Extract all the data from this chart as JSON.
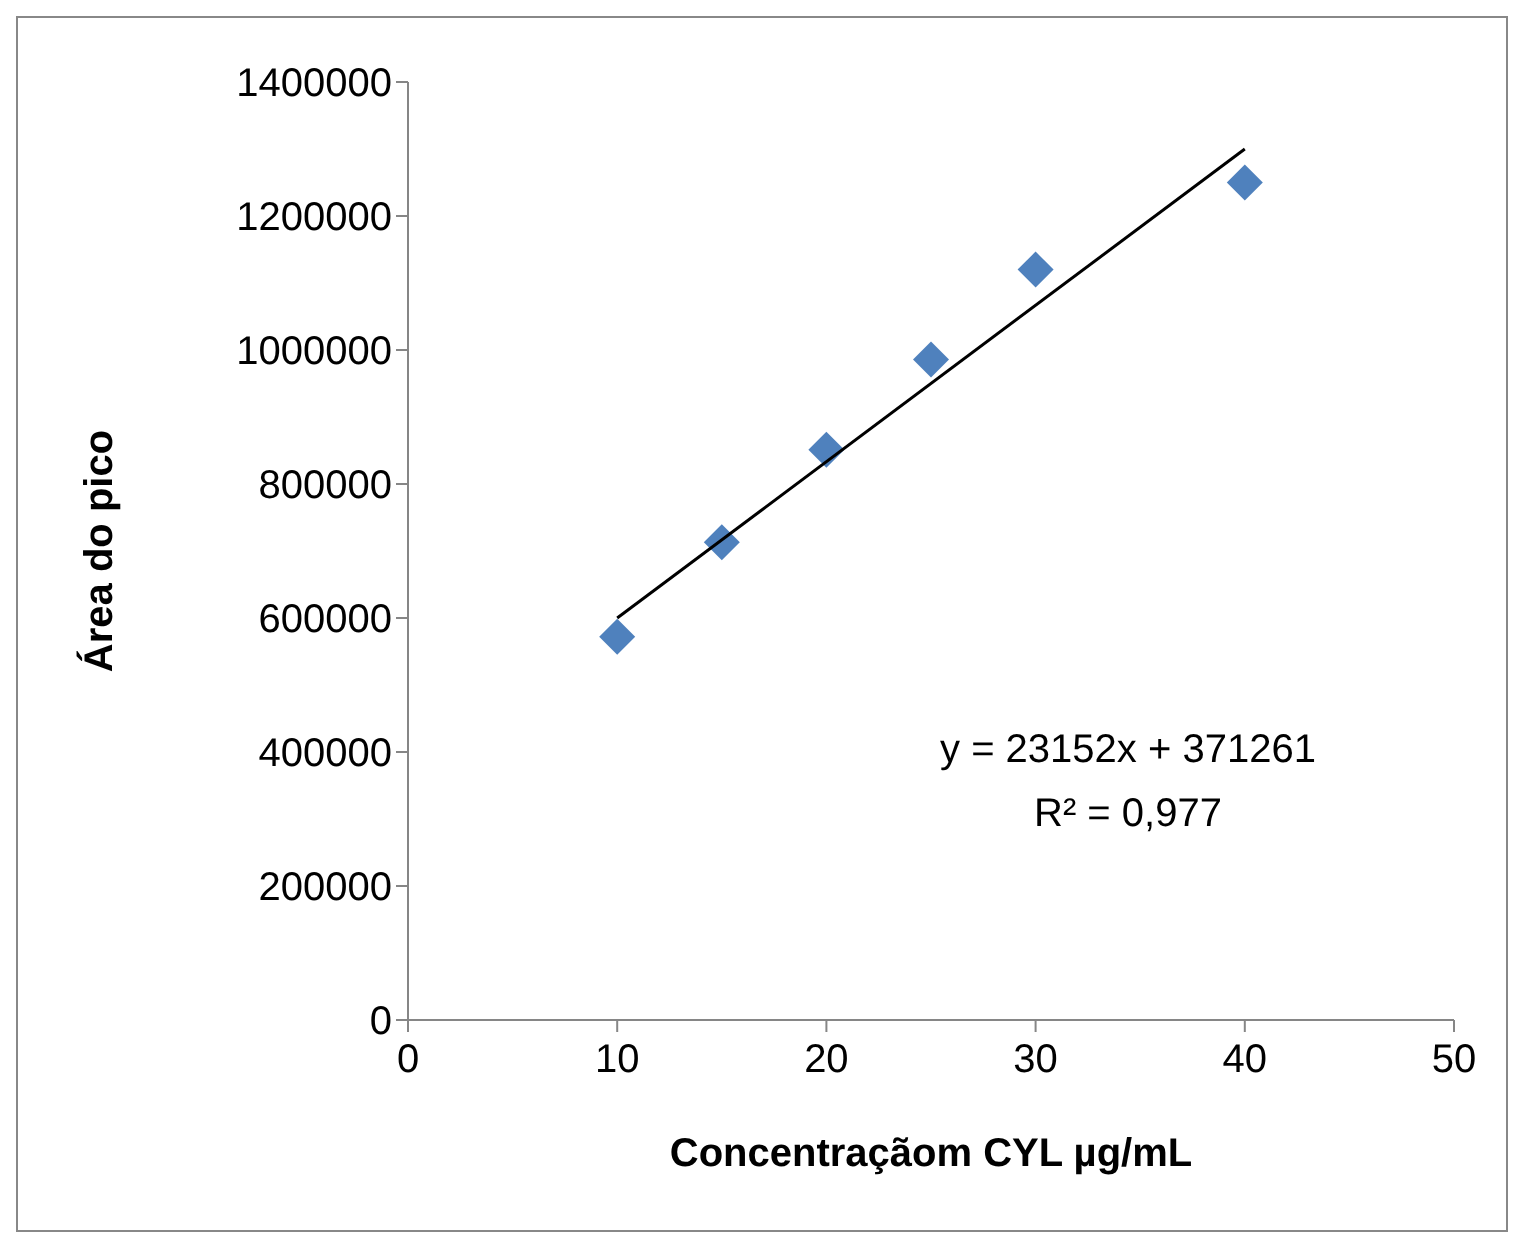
{
  "chart_data": {
    "type": "scatter",
    "xlabel": "Concentraçãom CYL µg/mL",
    "ylabel": "Área do pico",
    "x": [
      10,
      15,
      20,
      25,
      30,
      40
    ],
    "series": [
      {
        "color": "#4f81bd",
        "marker": "diamond",
        "values": [
          572000,
          713000,
          851000,
          986000,
          1120000,
          1250000
        ]
      },
      {
        "type": "line",
        "color": "#000000",
        "marker": "none",
        "x": [
          10,
          40
        ],
        "values": [
          600000,
          1300000
        ]
      }
    ],
    "xlim": [
      0,
      50
    ],
    "xticks": [
      0,
      10,
      20,
      30,
      40,
      50
    ],
    "ylim": [
      0,
      1400000
    ],
    "yticks": [
      0,
      200000,
      400000,
      600000,
      800000,
      1000000,
      1200000,
      1400000
    ],
    "grid": false,
    "annotations": [
      "y = 23152x + 371261",
      "R² = 0,977"
    ]
  }
}
